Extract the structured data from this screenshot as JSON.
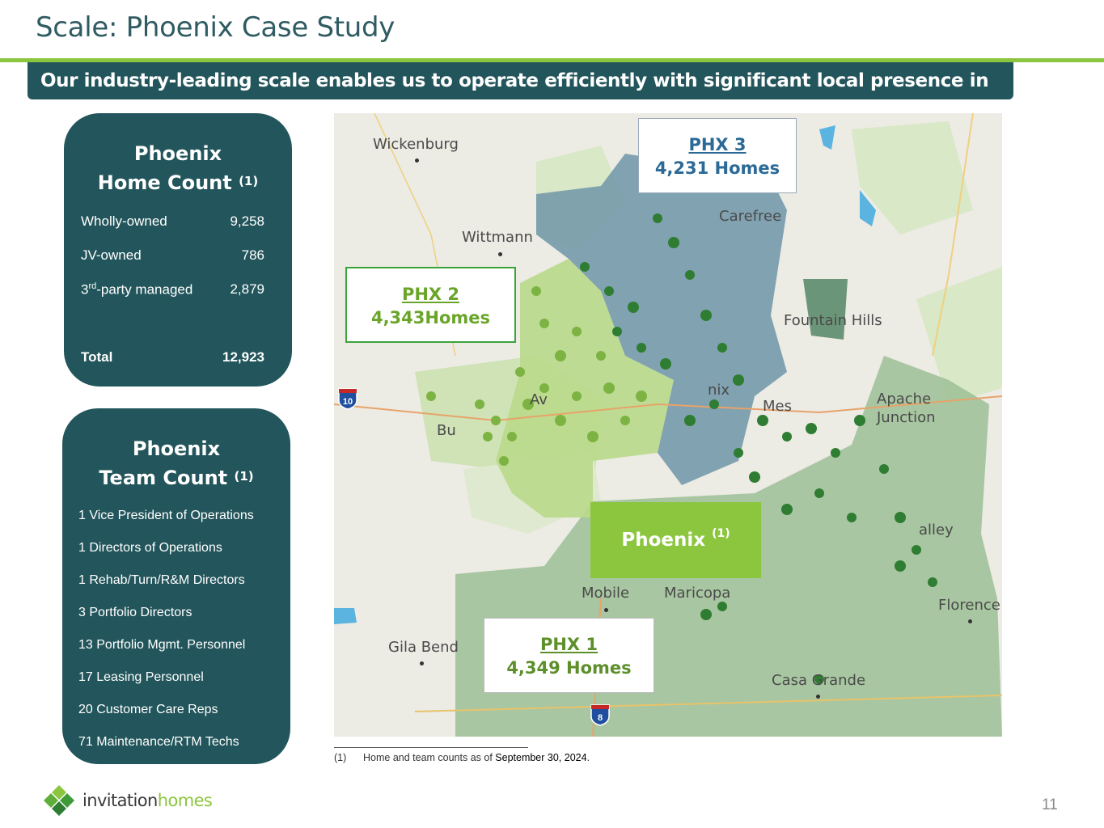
{
  "title": "Scale: Phoenix Case Study",
  "banner": "Our industry-leading scale enables us to operate efficiently with significant local presence in markets",
  "home_card": {
    "heading_line1": "Phoenix",
    "heading_line2": "Home Count",
    "heading_note": "(1)",
    "rows": [
      {
        "label": "Wholly-owned",
        "value": "9,258"
      },
      {
        "label": "JV-owned",
        "value": "786"
      },
      {
        "label_pre": "3",
        "label_sup": "rd",
        "label_post": "-party managed",
        "value": "2,879"
      }
    ],
    "total_label": "Total",
    "total_value": "12,923"
  },
  "team_card": {
    "heading_line1": "Phoenix",
    "heading_line2": "Team Count",
    "heading_note": "(1)",
    "items": [
      "1 Vice President of Operations",
      "1 Directors of Operations",
      "1 Rehab/Turn/R&M Directors",
      "3 Portfolio Directors",
      "13 Portfolio Mgmt. Personnel",
      "17 Leasing Personnel",
      "20  Customer Care Reps",
      "71 Maintenance/RTM Techs"
    ]
  },
  "map": {
    "regions": [
      {
        "title": "PHX 3",
        "homes": "4,231 Homes"
      },
      {
        "title": "PHX 2",
        "homes": "4,343Homes"
      },
      {
        "title": "PHX 1",
        "homes": "4,349 Homes"
      }
    ],
    "badge": "Phoenix",
    "badge_note": "(1)",
    "places": {
      "wickenburg": "Wickenburg",
      "wittmann": "Wittmann",
      "carefree": "Carefree",
      "fountain_hills": "Fountain Hills",
      "apache_junction": "Apache Junction",
      "mobile": "Mobile",
      "maricopa": "Maricopa",
      "gila_bend": "Gila Bend",
      "florence": "Florence",
      "casa_grande": "Casa Grande",
      "valley": "alley",
      "avondale": "Av",
      "buckeye": "Bu",
      "mesa": "Mes",
      "phoenix_city": "nix"
    },
    "highways": {
      "i10": "10",
      "i8": "8"
    },
    "colors": {
      "phx3": "#6f95a8",
      "phx2": "#b9d98a",
      "phx1": "#9cbf95",
      "homes_dark": "#2e7d32",
      "homes_light": "#7cb342"
    }
  },
  "footnote": {
    "num": "(1)",
    "text": "Home and team counts as of ",
    "date": "September 30, 2024",
    "end": "."
  },
  "logo": {
    "word1": "invitation",
    "word2": "homes"
  },
  "page_number": "11"
}
